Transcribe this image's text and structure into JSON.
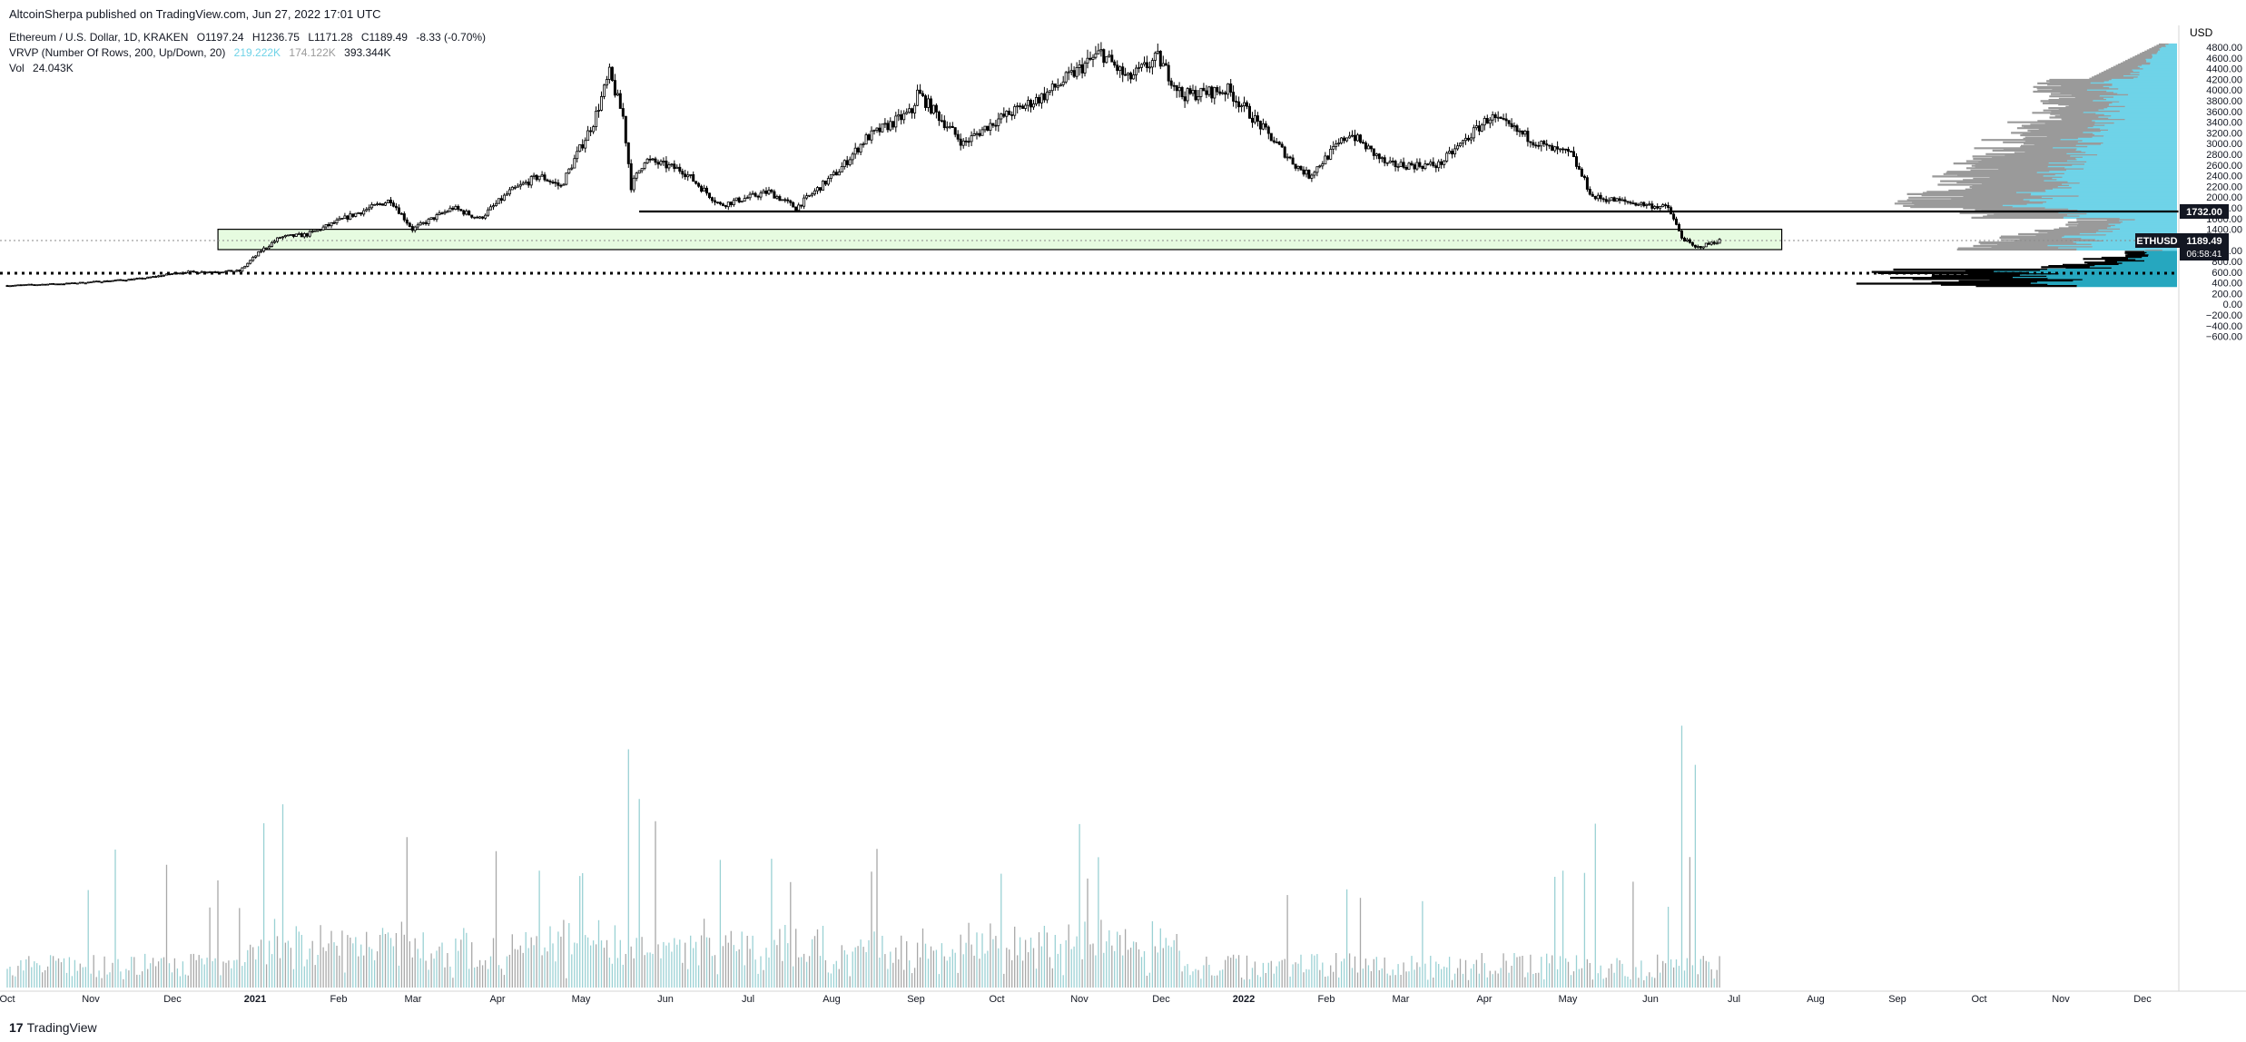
{
  "header": {
    "published": "AltcoinSherpa published on TradingView.com, Jun 27, 2022 17:01 UTC",
    "symbol": "Ethereum / U.S. Dollar, 1D, KRAKEN",
    "open": "O1197.24",
    "high": "H1236.75",
    "low": "L1171.28",
    "close": "C1189.49",
    "change": "-8.33 (-0.70%)",
    "vrvp_label": "VRVP (Number Of Rows, 200, Up/Down, 20)",
    "vrvp_up": "219.222K",
    "vrvp_down": "174.122K",
    "vrvp_total": "393.344K",
    "vol_label": "Vol",
    "vol_value": "24.043K"
  },
  "brand": {
    "logo": "17",
    "name": "TradingView"
  },
  "colors": {
    "candle": "#000000",
    "volume_up": "#9ad1d4",
    "volume_down": "#a8a8a8",
    "vp_up": "#6fd3e8",
    "vp_down": "#9a9a9a",
    "vp_low_up": "#26a7bf",
    "vp_low_down": "#000000",
    "zone_fill": "#e6fbe0",
    "axis_text": "#131722"
  },
  "chart_data": {
    "type": "candlestick",
    "currency": "USD",
    "y_ticks": [
      4800,
      4600,
      4400,
      4200,
      4000,
      3800,
      3600,
      3400,
      3200,
      3000,
      2800,
      2600,
      2400,
      2200,
      2000,
      1800,
      1600,
      1400,
      1000,
      800,
      600,
      400,
      200,
      0,
      -200,
      -400,
      -600
    ],
    "ylim": [
      -640,
      5000
    ],
    "x_labels": [
      "Oct",
      "Nov",
      "Dec",
      "2021",
      "Feb",
      "Mar",
      "Apr",
      "May",
      "Jun",
      "Jul",
      "Aug",
      "Sep",
      "Oct",
      "Nov",
      "Dec",
      "2022",
      "Feb",
      "Mar",
      "Apr",
      "May",
      "Jun",
      "Jul",
      "Aug",
      "Sep",
      "Oct",
      "Nov",
      "Dec"
    ],
    "price_path": [
      [
        "2020-10-01",
        350
      ],
      [
        "2020-10-25",
        390
      ],
      [
        "2020-11-20",
        480
      ],
      [
        "2020-12-05",
        600
      ],
      [
        "2020-12-26",
        620
      ],
      [
        "2021-01-03",
        1000
      ],
      [
        "2021-01-10",
        1250
      ],
      [
        "2021-01-20",
        1300
      ],
      [
        "2021-02-05",
        1650
      ],
      [
        "2021-02-20",
        1950
      ],
      [
        "2021-02-28",
        1400
      ],
      [
        "2021-03-15",
        1800
      ],
      [
        "2021-03-25",
        1600
      ],
      [
        "2021-04-05",
        2100
      ],
      [
        "2021-04-16",
        2400
      ],
      [
        "2021-04-24",
        2200
      ],
      [
        "2021-05-06",
        3400
      ],
      [
        "2021-05-12",
        4300
      ],
      [
        "2021-05-17",
        3500
      ],
      [
        "2021-05-20",
        2200
      ],
      [
        "2021-05-25",
        2700
      ],
      [
        "2021-06-08",
        2500
      ],
      [
        "2021-06-22",
        1850
      ],
      [
        "2021-07-10",
        2100
      ],
      [
        "2021-07-20",
        1800
      ],
      [
        "2021-08-05",
        2500
      ],
      [
        "2021-08-15",
        3100
      ],
      [
        "2021-09-01",
        3600
      ],
      [
        "2021-09-03",
        3950
      ],
      [
        "2021-09-20",
        3000
      ],
      [
        "2021-10-01",
        3400
      ],
      [
        "2021-10-20",
        3900
      ],
      [
        "2021-11-10",
        4700
      ],
      [
        "2021-11-20",
        4200
      ],
      [
        "2021-12-01",
        4600
      ],
      [
        "2021-12-10",
        3900
      ],
      [
        "2021-12-27",
        4000
      ],
      [
        "2022-01-05",
        3500
      ],
      [
        "2022-01-21",
        2600
      ],
      [
        "2022-01-26",
        2400
      ],
      [
        "2022-02-10",
        3200
      ],
      [
        "2022-02-24",
        2600
      ],
      [
        "2022-03-15",
        2600
      ],
      [
        "2022-04-03",
        3500
      ],
      [
        "2022-04-25",
        2900
      ],
      [
        "2022-05-03",
        2800
      ],
      [
        "2022-05-11",
        2000
      ],
      [
        "2022-05-25",
        1900
      ],
      [
        "2022-06-08",
        1800
      ],
      [
        "2022-06-13",
        1250
      ],
      [
        "2022-06-18",
        1050
      ],
      [
        "2022-06-27",
        1189.49
      ]
    ],
    "horizontal_line": {
      "start": "2021-05-23",
      "value": 1732,
      "label": "1732.00"
    },
    "dotted_line": {
      "value": 580
    },
    "zone": {
      "start": "2020-12-18",
      "end": "2022-07-20",
      "low": 1020,
      "high": 1400
    },
    "last_price": {
      "symbol": "ETHUSD",
      "value": "1189.49",
      "countdown": "06:58:41"
    },
    "volume": {
      "peak_dates": [
        "2021-01-04",
        "2021-01-11",
        "2021-05-19",
        "2021-05-23",
        "2022-05-12",
        "2022-06-13",
        "2022-06-18"
      ]
    }
  }
}
